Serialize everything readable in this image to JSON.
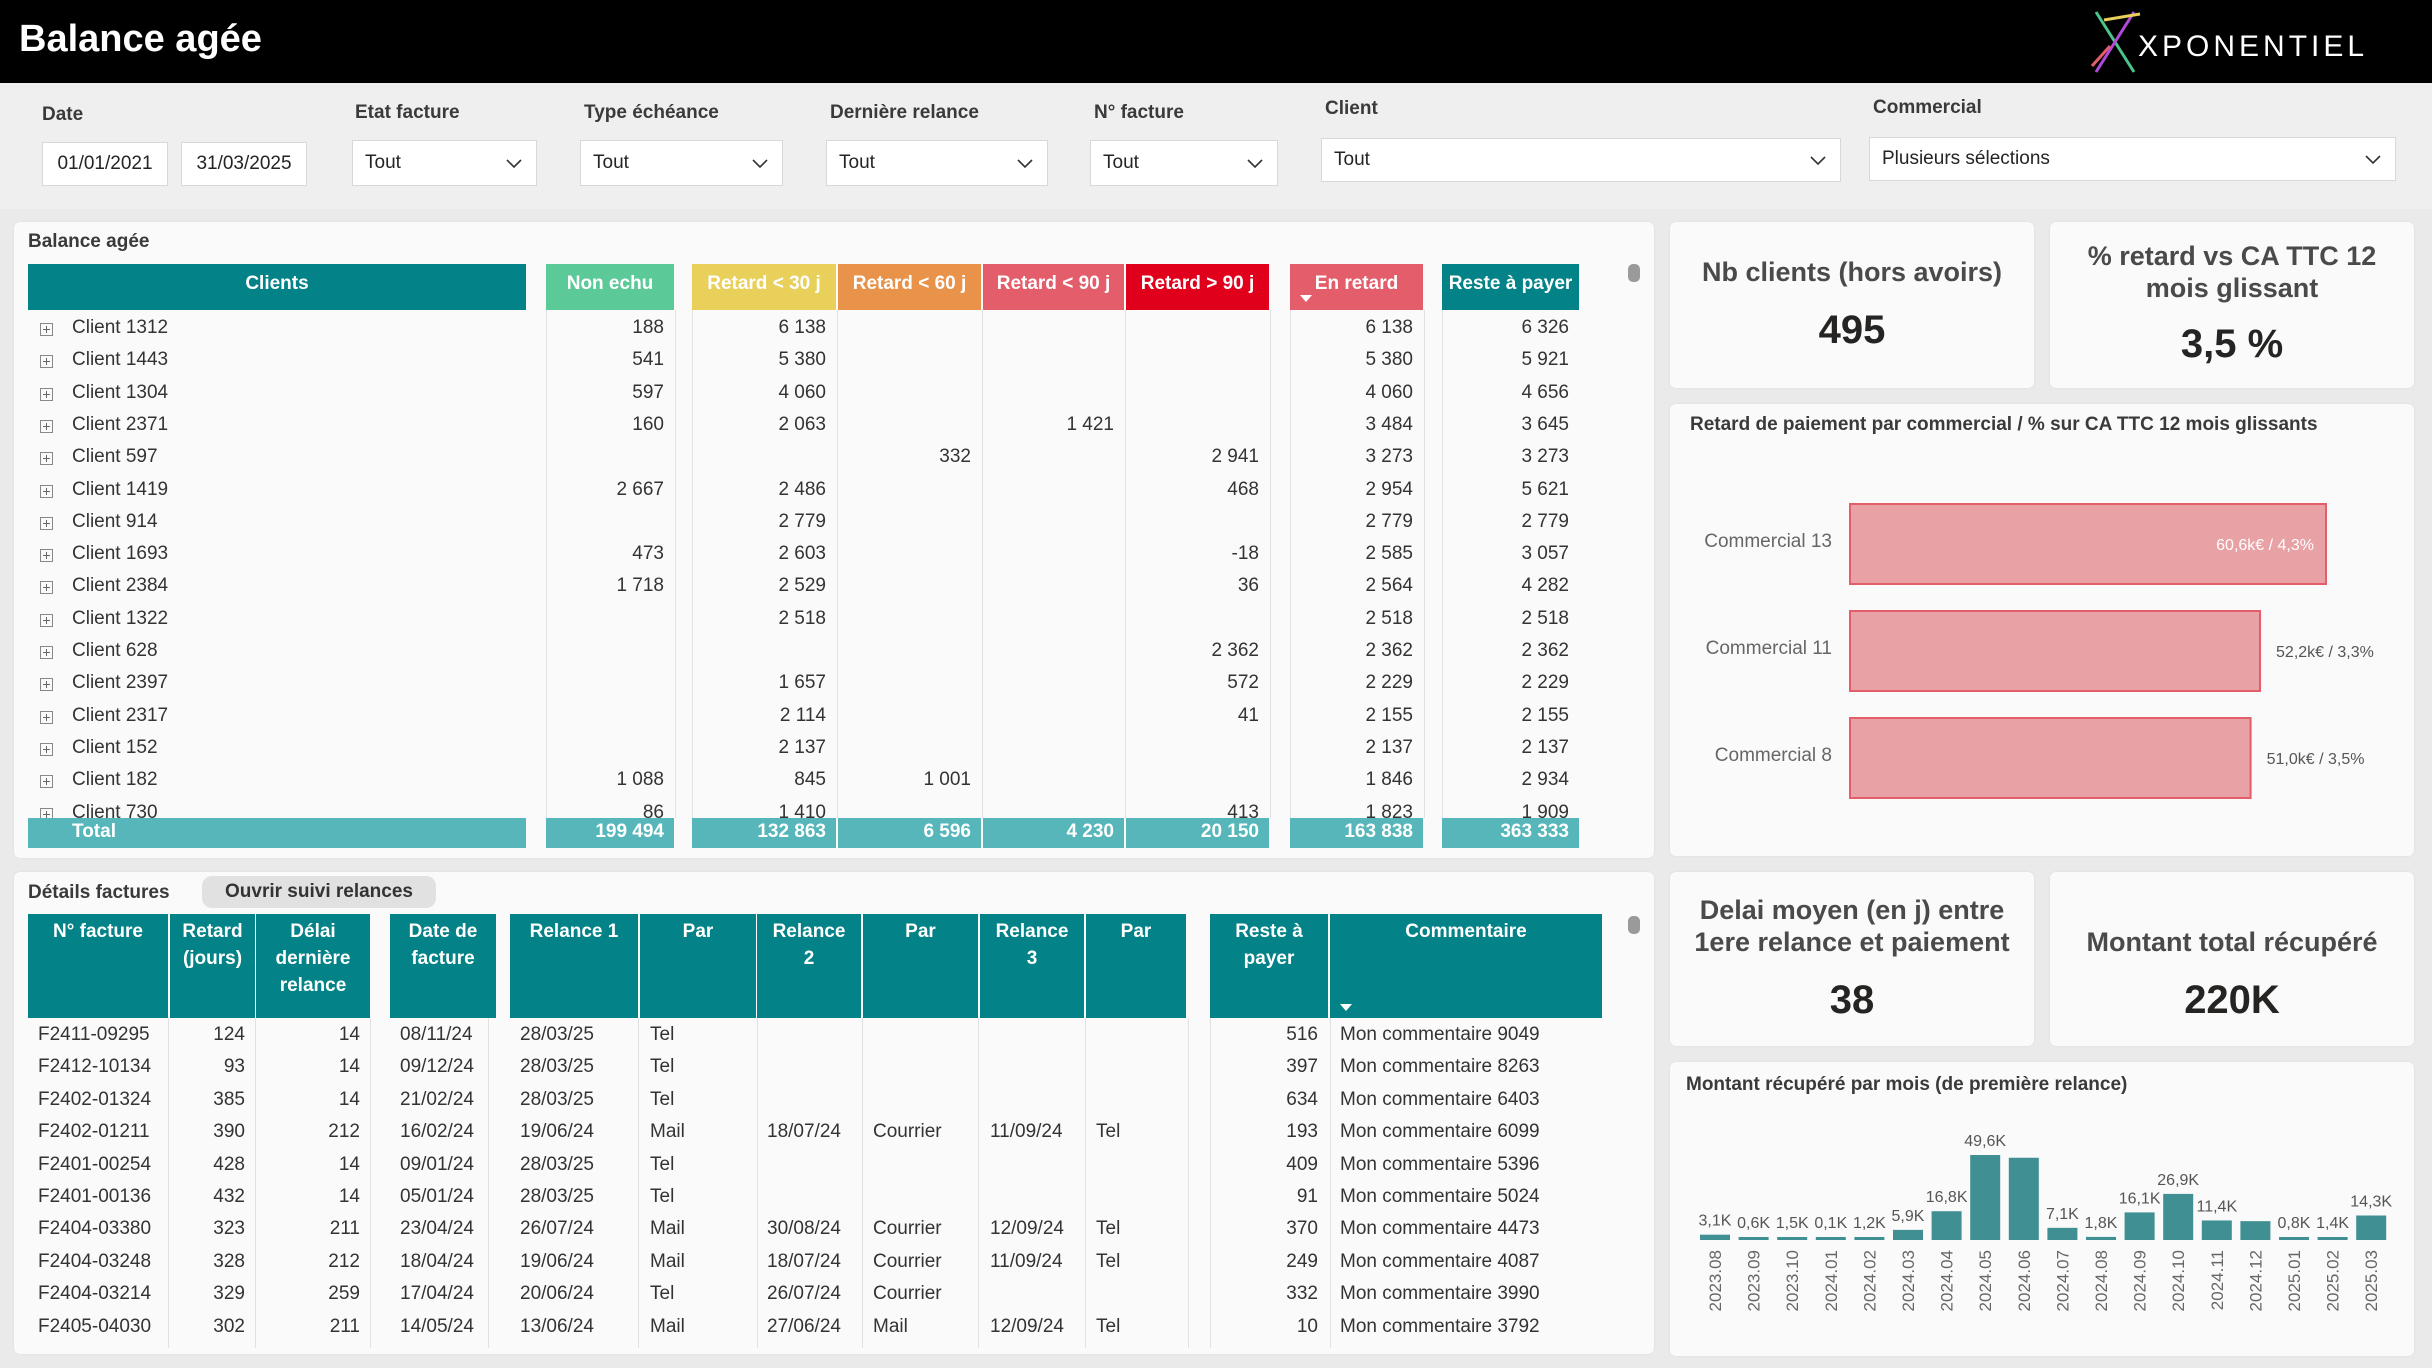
{
  "header": {
    "title": "Balance agée",
    "logo_text": "XPONENTIEL"
  },
  "filters": {
    "date_label": "Date",
    "date_from": "01/01/2021",
    "date_to": "31/03/2025",
    "etat_label": "Etat facture",
    "etat_value": "Tout",
    "type_label": "Type échéance",
    "type_value": "Tout",
    "relance_label": "Dernière relance",
    "relance_value": "Tout",
    "facture_label": "N° facture",
    "facture_value": "Tout",
    "client_label": "Client",
    "client_value": "Tout",
    "commercial_label": "Commercial",
    "commercial_value": "Plusieurs sélections"
  },
  "balance": {
    "title": "Balance agée",
    "headers": [
      "Clients",
      "Non echu",
      "Retard < 30 j",
      "Retard < 60 j",
      "Retard < 90 j",
      "Retard > 90 j",
      "En retard",
      "Reste à payer"
    ],
    "header_colors": [
      "#038387",
      "#5cc999",
      "#e8d05b",
      "#e8924a",
      "#e35d6a",
      "#e0001b",
      "#e35d6a",
      "#038387"
    ],
    "rows": [
      [
        "Client 1312",
        "188",
        "6 138",
        "",
        "",
        "",
        "6 138",
        "6 326"
      ],
      [
        "Client 1443",
        "541",
        "5 380",
        "",
        "",
        "",
        "5 380",
        "5 921"
      ],
      [
        "Client 1304",
        "597",
        "4 060",
        "",
        "",
        "",
        "4 060",
        "4 656"
      ],
      [
        "Client 2371",
        "160",
        "2 063",
        "",
        "1 421",
        "",
        "3 484",
        "3 645"
      ],
      [
        "Client 597",
        "",
        "",
        "332",
        "",
        "2 941",
        "3 273",
        "3 273"
      ],
      [
        "Client 1419",
        "2 667",
        "2 486",
        "",
        "",
        "468",
        "2 954",
        "5 621"
      ],
      [
        "Client 914",
        "",
        "2 779",
        "",
        "",
        "",
        "2 779",
        "2 779"
      ],
      [
        "Client 1693",
        "473",
        "2 603",
        "",
        "",
        "-18",
        "2 585",
        "3 057"
      ],
      [
        "Client 2384",
        "1 718",
        "2 529",
        "",
        "",
        "36",
        "2 564",
        "4 282"
      ],
      [
        "Client 1322",
        "",
        "2 518",
        "",
        "",
        "",
        "2 518",
        "2 518"
      ],
      [
        "Client 628",
        "",
        "",
        "",
        "",
        "2 362",
        "2 362",
        "2 362"
      ],
      [
        "Client 2397",
        "",
        "1 657",
        "",
        "",
        "572",
        "2 229",
        "2 229"
      ],
      [
        "Client 2317",
        "",
        "2 114",
        "",
        "",
        "41",
        "2 155",
        "2 155"
      ],
      [
        "Client 152",
        "",
        "2 137",
        "",
        "",
        "",
        "2 137",
        "2 137"
      ],
      [
        "Client 182",
        "1 088",
        "845",
        "1 001",
        "",
        "",
        "1 846",
        "2 934"
      ],
      [
        "Client 730",
        "86",
        "1 410",
        "",
        "",
        "413",
        "1 823",
        "1 909"
      ]
    ],
    "total": [
      "Total",
      "199 494",
      "132 863",
      "6 596",
      "4 230",
      "20 150",
      "163 838",
      "363 333"
    ]
  },
  "kpis": {
    "nb_clients_title": "Nb clients (hors avoirs)",
    "nb_clients_value": "495",
    "retard_title": "% retard vs CA TTC 12 mois glissant",
    "retard_value": "3,5 %",
    "delai_title": "Delai moyen (en j) entre 1ere relance et paiement",
    "delai_value": "38",
    "montant_title": "Montant total récupéré",
    "montant_value": "220K"
  },
  "commercial_chart": {
    "title": "Retard de paiement par commercial  / % sur CA TTC 12 mois glissants",
    "bar_color": "#e8a1a5",
    "bars": [
      {
        "name": "Commercial 13",
        "value": 60.6,
        "label": "60,6k€ / 4,3%"
      },
      {
        "name": "Commercial 11",
        "value": 52.2,
        "label": "52,2k€ / 3,3%"
      },
      {
        "name": "Commercial 8",
        "value": 51.0,
        "label": "51,0k€ / 3,5%"
      }
    ]
  },
  "details": {
    "title": "Détails factures",
    "button_label": "Ouvrir suivi relances",
    "headers": [
      "N° facture",
      "Retard\n(jours)",
      "Délai\ndernière\nrelance",
      "Date de\nfacture",
      "Relance 1",
      "Par",
      "Relance\n2",
      "Par",
      "Relance\n3",
      "Par",
      "Reste à\npayer",
      "Commentaire"
    ],
    "rows": [
      [
        "F2411-09295",
        "124",
        "14",
        "08/11/24",
        "28/03/25",
        "Tel",
        "",
        "",
        "",
        "",
        "516",
        "Mon commentaire 9049"
      ],
      [
        "F2412-10134",
        "93",
        "14",
        "09/12/24",
        "28/03/25",
        "Tel",
        "",
        "",
        "",
        "",
        "397",
        "Mon commentaire 8263"
      ],
      [
        "F2402-01324",
        "385",
        "14",
        "21/02/24",
        "28/03/25",
        "Tel",
        "",
        "",
        "",
        "",
        "634",
        "Mon commentaire 6403"
      ],
      [
        "F2402-01211",
        "390",
        "212",
        "16/02/24",
        "19/06/24",
        "Mail",
        "18/07/24",
        "Courrier",
        "11/09/24",
        "Tel",
        "193",
        "Mon commentaire 6099"
      ],
      [
        "F2401-00254",
        "428",
        "14",
        "09/01/24",
        "28/03/25",
        "Tel",
        "",
        "",
        "",
        "",
        "409",
        "Mon commentaire 5396"
      ],
      [
        "F2401-00136",
        "432",
        "14",
        "05/01/24",
        "28/03/25",
        "Tel",
        "",
        "",
        "",
        "",
        "91",
        "Mon commentaire 5024"
      ],
      [
        "F2404-03380",
        "323",
        "211",
        "23/04/24",
        "26/07/24",
        "Mail",
        "30/08/24",
        "Courrier",
        "12/09/24",
        "Tel",
        "370",
        "Mon commentaire 4473"
      ],
      [
        "F2404-03248",
        "328",
        "212",
        "18/04/24",
        "19/06/24",
        "Mail",
        "18/07/24",
        "Courrier",
        "11/09/24",
        "Tel",
        "249",
        "Mon commentaire 4087"
      ],
      [
        "F2404-03214",
        "329",
        "259",
        "17/04/24",
        "20/06/24",
        "Tel",
        "26/07/24",
        "Courrier",
        "",
        "",
        "332",
        "Mon commentaire 3990"
      ],
      [
        "F2405-04030",
        "302",
        "211",
        "14/05/24",
        "13/06/24",
        "Mail",
        "27/06/24",
        "Mail",
        "12/09/24",
        "Tel",
        "10",
        "Mon commentaire 3792"
      ]
    ]
  },
  "chart_data": {
    "type": "bar",
    "title": "Montant récupéré par mois (de première relance)",
    "categories": [
      "2023.08",
      "2023.09",
      "2023.10",
      "2024.01",
      "2024.02",
      "2024.03",
      "2024.04",
      "2024.05",
      "2024.06",
      "2024.07",
      "2024.08",
      "2024.09",
      "2024.10",
      "2024.11",
      "2024.12",
      "2025.01",
      "2025.02",
      "2025.03"
    ],
    "values": [
      3.1,
      0.6,
      1.5,
      0.1,
      1.2,
      5.9,
      16.8,
      49.6,
      48,
      7.1,
      1.8,
      16.1,
      26.9,
      11.4,
      11,
      0.8,
      1.4,
      14.3
    ],
    "labels": [
      "3,1K",
      "0,6K",
      "1,5K",
      "0,1K",
      "1,2K",
      "5,9K",
      "16,8K",
      "49,6K",
      "",
      "7,1K",
      "1,8K",
      "16,1K",
      "26,9K",
      "11,4K",
      "",
      "0,8K",
      "1,4K",
      "14,3K"
    ],
    "bar_color": "#3f8f93"
  }
}
